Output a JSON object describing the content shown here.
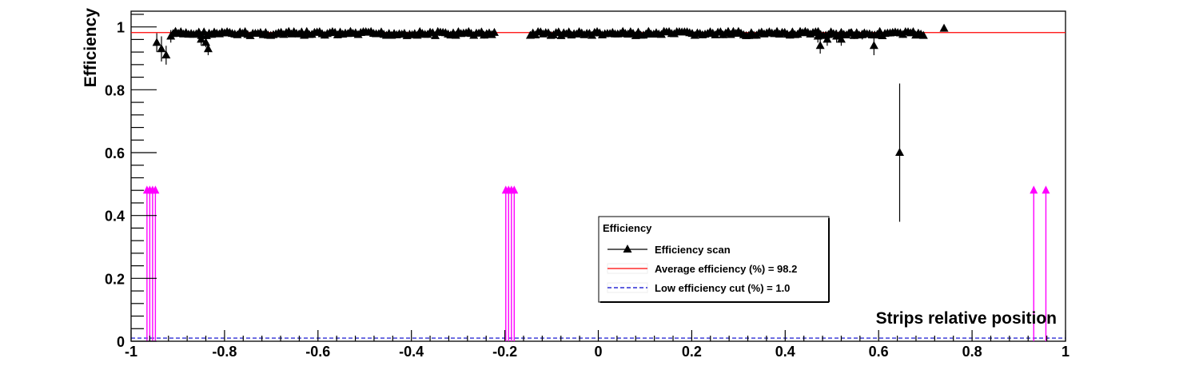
{
  "chart_data": {
    "type": "scatter",
    "xlabel": "Strips relative position",
    "ylabel": "Efficiency",
    "xlim": [
      -1,
      1
    ],
    "ylim": [
      0,
      1.05
    ],
    "x_ticks": [
      -1,
      -0.8,
      -0.6,
      -0.4,
      -0.2,
      0,
      0.2,
      0.4,
      0.6,
      0.8,
      1
    ],
    "x_tick_labels": [
      "-1",
      "-0.8",
      "-0.6",
      "-0.4",
      "-0.2",
      "0",
      "0.2",
      "0.4",
      "0.6",
      "0.8",
      "1"
    ],
    "y_ticks": [
      0,
      0.2,
      0.4,
      0.6,
      0.8,
      1
    ],
    "y_tick_labels": [
      "0",
      "0.2",
      "0.4",
      "0.6",
      "0.8",
      "1"
    ],
    "grid": false,
    "legend": {
      "title": "Efficiency",
      "placement": "bottom-center",
      "entries": [
        {
          "label": "Efficiency scan",
          "style": "marker-line",
          "color": "#000000"
        },
        {
          "label": "Average efficiency (%) = 98.2",
          "style": "line",
          "color": "#ff0000"
        },
        {
          "label": "Low efficiency cut (%) =  1.0",
          "style": "dashed",
          "color": "#0000cc"
        }
      ]
    },
    "series": [
      {
        "name": "Efficiency scan",
        "color": "#000000",
        "marker": "triangle-up",
        "range": [
          -0.94,
          0.74
        ],
        "typical_value": 0.985,
        "points": [
          {
            "x": -0.945,
            "y": 0.95,
            "err": 0.03
          },
          {
            "x": -0.935,
            "y": 0.93,
            "err": 0.04
          },
          {
            "x": -0.925,
            "y": 0.91,
            "err": 0.03
          },
          {
            "x": -0.915,
            "y": 0.97,
            "err": 0.02
          },
          {
            "x": -0.905,
            "y": 0.985,
            "err": 0.01
          },
          {
            "x": -0.85,
            "y": 0.96,
            "err": 0.02
          },
          {
            "x": -0.84,
            "y": 0.95,
            "err": 0.015
          },
          {
            "x": -0.835,
            "y": 0.93,
            "err": 0.02
          },
          {
            "x": 0.47,
            "y": 0.97,
            "err": 0.02
          },
          {
            "x": 0.475,
            "y": 0.94,
            "err": 0.025
          },
          {
            "x": 0.49,
            "y": 0.96,
            "err": 0.02
          },
          {
            "x": 0.51,
            "y": 0.97,
            "err": 0.02
          },
          {
            "x": 0.52,
            "y": 0.96,
            "err": 0.02
          },
          {
            "x": 0.54,
            "y": 0.98,
            "err": 0.01
          },
          {
            "x": 0.565,
            "y": 0.975,
            "err": 0.015
          },
          {
            "x": 0.59,
            "y": 0.94,
            "err": 0.03
          },
          {
            "x": 0.645,
            "y": 0.6,
            "err": 0.22
          }
        ]
      },
      {
        "name": "Average efficiency (%) = 98.2",
        "color": "#ff0000",
        "type": "hline",
        "y": 0.982
      },
      {
        "name": "Low efficiency cut (%) =  1.0",
        "color": "#0000cc",
        "type": "hline-dashed",
        "y": 0.01
      },
      {
        "name": "",
        "color": "#ff00ff",
        "type": "arrows",
        "y": 0.48,
        "x": [
          -0.966,
          -0.96,
          -0.954,
          -0.948,
          -0.198,
          -0.192,
          -0.186,
          -0.18,
          0.932,
          0.958
        ]
      }
    ]
  }
}
